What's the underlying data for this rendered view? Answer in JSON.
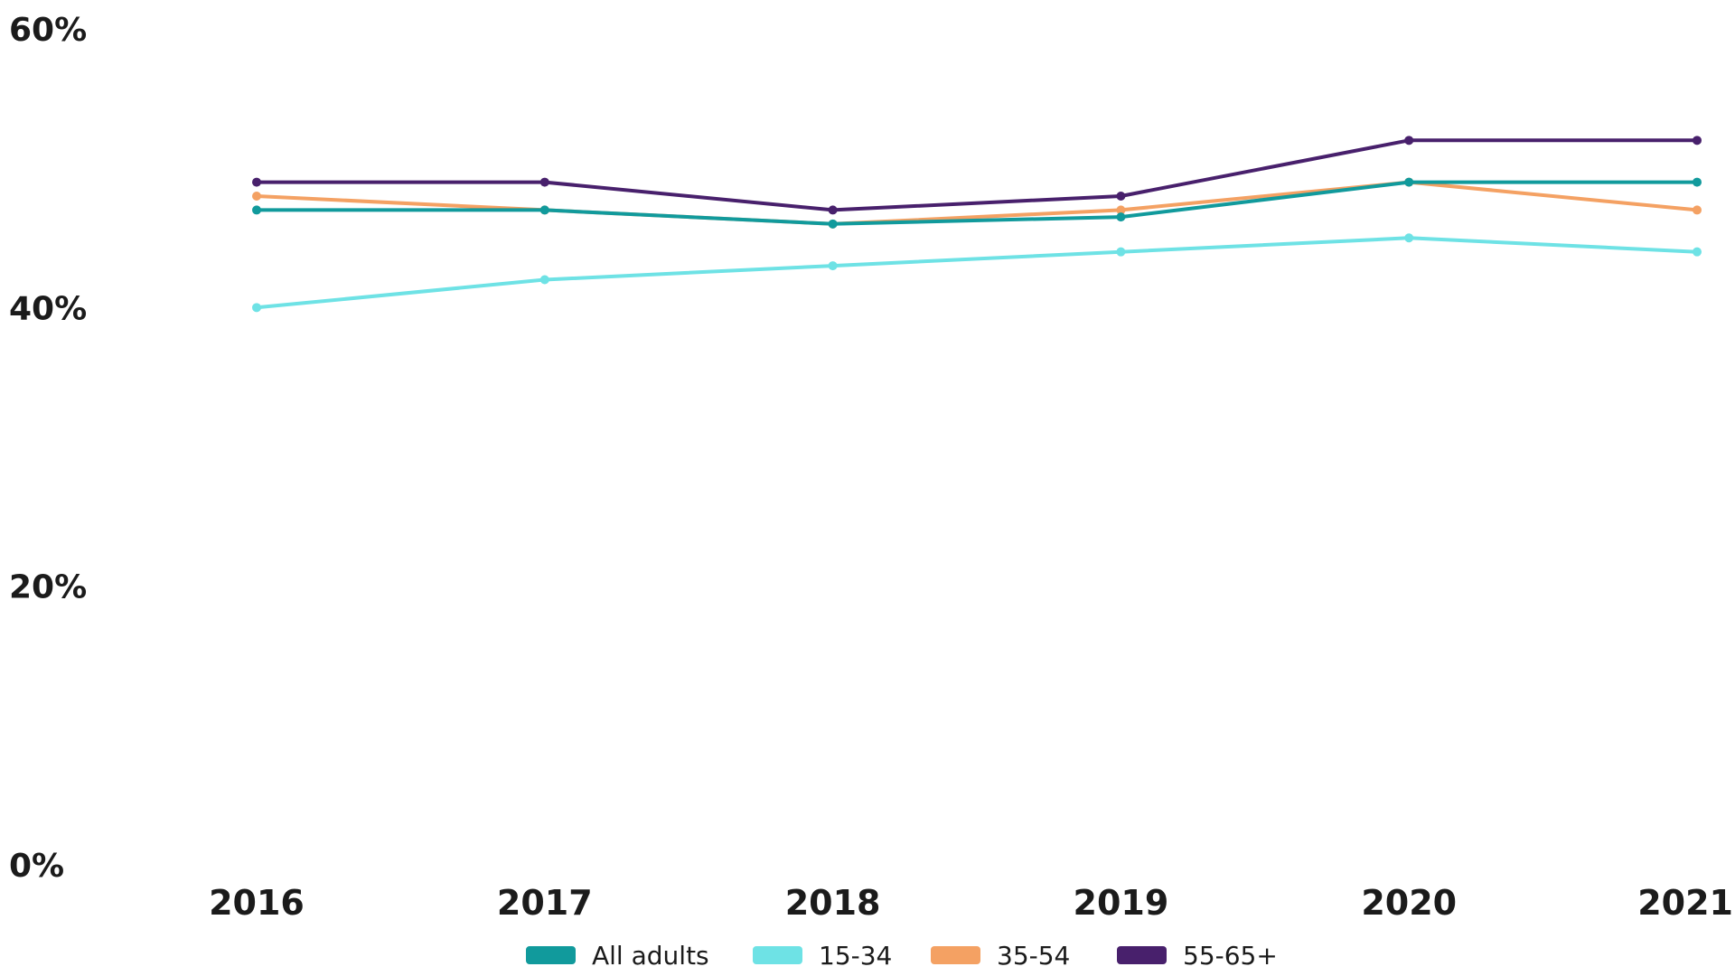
{
  "chart_data": {
    "type": "line",
    "title": "",
    "xlabel": "",
    "ylabel": "",
    "x": [
      "2016",
      "2017",
      "2018",
      "2019",
      "2020",
      "2021"
    ],
    "ylim": [
      0,
      60
    ],
    "y_ticks": [
      "0%",
      "20%",
      "40%",
      "60%"
    ],
    "y_tick_values": [
      0,
      20,
      40,
      60
    ],
    "grid": false,
    "legend_position": "bottom",
    "series": [
      {
        "name": "All adults",
        "color": "#119a9c",
        "values": [
          47,
          47,
          46,
          46.5,
          49,
          49
        ]
      },
      {
        "name": "15-34",
        "color": "#6ee2e5",
        "values": [
          40,
          42,
          43,
          44,
          45,
          44
        ]
      },
      {
        "name": "35-54",
        "color": "#f4a163",
        "values": [
          48,
          47,
          46,
          47,
          49,
          47
        ]
      },
      {
        "name": "55-65+",
        "color": "#48206c",
        "values": [
          49,
          49,
          47,
          48,
          52,
          52
        ]
      }
    ]
  }
}
